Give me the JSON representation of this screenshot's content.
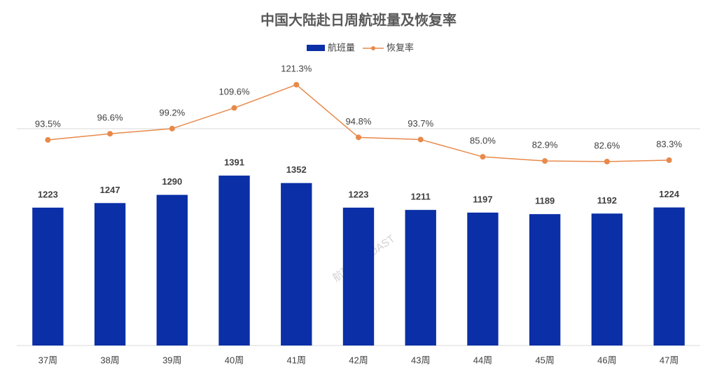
{
  "chart_data": {
    "type": "bar-line",
    "title": "中国大陆赴日周航班量及恢复率",
    "categories": [
      "37周",
      "38周",
      "39周",
      "40周",
      "41周",
      "42周",
      "43周",
      "44周",
      "45周",
      "46周",
      "47周"
    ],
    "series": [
      {
        "name": "航班量",
        "type": "bar",
        "color": "#0a2fa6",
        "values": [
          1223,
          1247,
          1290,
          1391,
          1352,
          1223,
          1211,
          1197,
          1189,
          1192,
          1224
        ]
      },
      {
        "name": "恢复率",
        "type": "line",
        "axis": "y2",
        "color": "#e8894a",
        "values": [
          93.5,
          96.6,
          99.2,
          109.6,
          121.3,
          94.8,
          93.7,
          85.0,
          82.9,
          82.6,
          83.3
        ],
        "value_labels": [
          "93.5%",
          "96.6%",
          "99.2%",
          "109.6%",
          "121.3%",
          "94.8%",
          "93.7%",
          "85.0%",
          "82.9%",
          "82.6%",
          "83.3%"
        ]
      }
    ],
    "ylim": [
      500,
      2000
    ],
    "y2lim": [
      -10,
      134
    ],
    "legend": "top",
    "watermark": "航班管家 DAST"
  }
}
